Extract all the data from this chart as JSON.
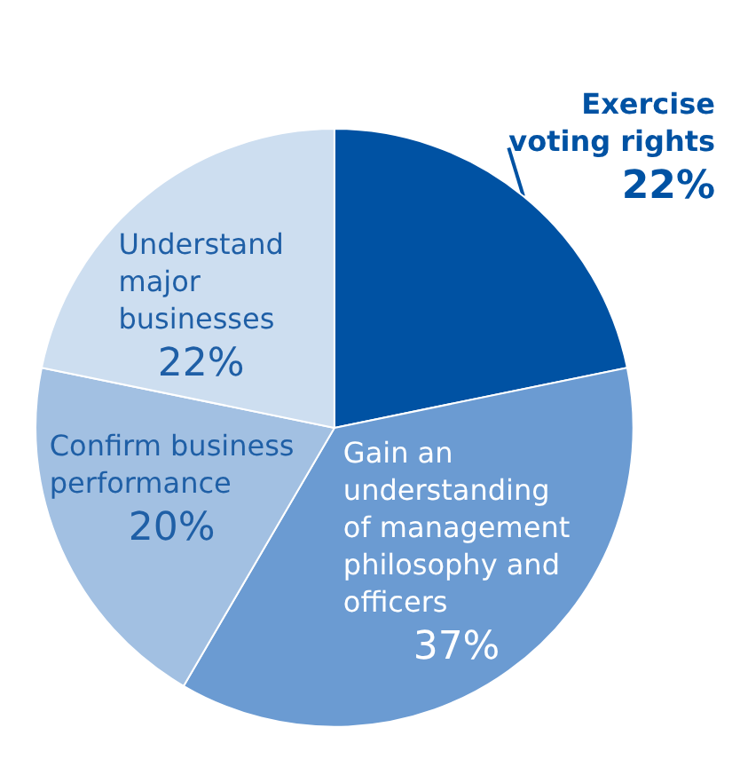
{
  "chart_data": {
    "type": "pie",
    "categories": [
      "Exercise voting rights",
      "Gain an understanding of management philosophy and officers",
      "Confirm business performance",
      "Understand major businesses"
    ],
    "values": [
      22,
      37,
      20,
      22
    ],
    "value_labels": [
      "22%",
      "37%",
      "20%",
      "22%"
    ],
    "colors": [
      "#0052a3",
      "#6b9bd2",
      "#a2c0e2",
      "#cddef0"
    ],
    "legend": false
  }
}
